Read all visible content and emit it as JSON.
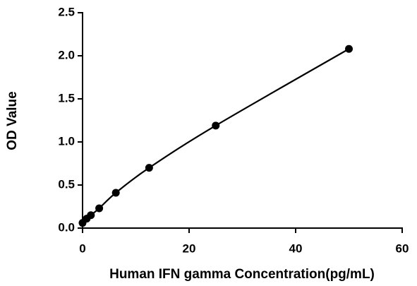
{
  "chart_data": {
    "type": "line",
    "x_label": "Human IFN gamma Concentration(pg/mL)",
    "y_label": "OD Value",
    "series": [
      {
        "color": "#000000",
        "x": [
          0,
          0.78,
          1.56,
          3.125,
          6.25,
          12.5,
          25,
          50
        ],
        "values": [
          0.06,
          0.11,
          0.15,
          0.23,
          0.41,
          0.7,
          1.19,
          2.08
        ]
      }
    ],
    "xlim": [
      0,
      60
    ],
    "xticks": [
      0,
      20,
      40,
      60
    ],
    "ylim": [
      0,
      2.5
    ],
    "yticks": [
      {
        "value": 0,
        "label": "0.0"
      },
      0.5,
      {
        "value": 1,
        "label": "1.0"
      },
      1.5,
      {
        "value": 2,
        "label": "2.0"
      },
      2.5
    ],
    "grid": false,
    "markers": true
  }
}
